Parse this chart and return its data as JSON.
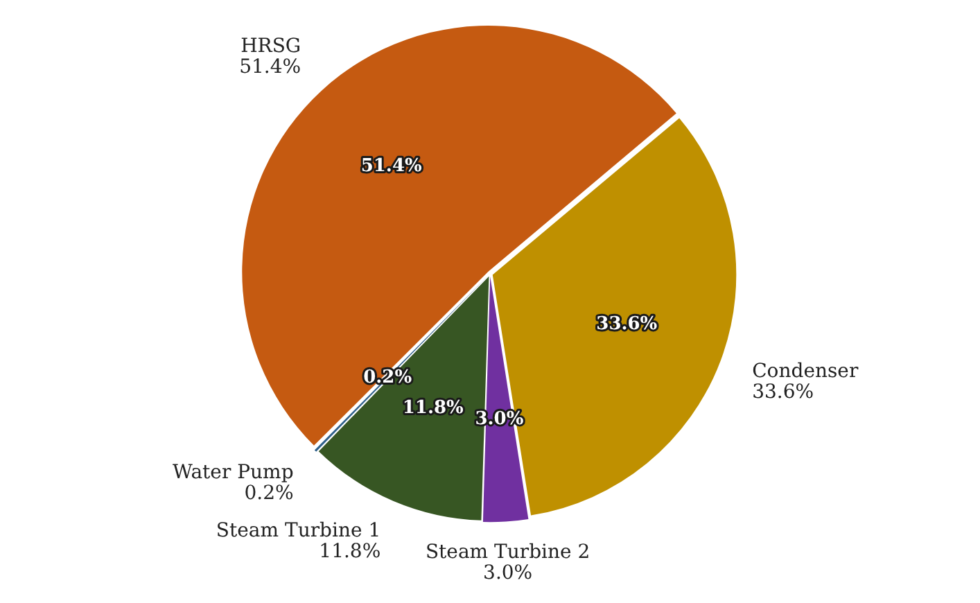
{
  "chart_data": {
    "type": "pie",
    "categories": [
      "Condenser",
      "Steam Turbine 2",
      "Steam Turbine 1",
      "Water Pump",
      "HRSG"
    ],
    "values": [
      33.6,
      3.0,
      11.8,
      0.2,
      51.4
    ],
    "value_labels": [
      "33.6%",
      "3.0%",
      "11.8%",
      "0.2%",
      "51.4%"
    ],
    "colors": [
      "#bf9000",
      "#7030a0",
      "#375623",
      "#2e5f8a",
      "#c55a11"
    ],
    "legend": false
  }
}
